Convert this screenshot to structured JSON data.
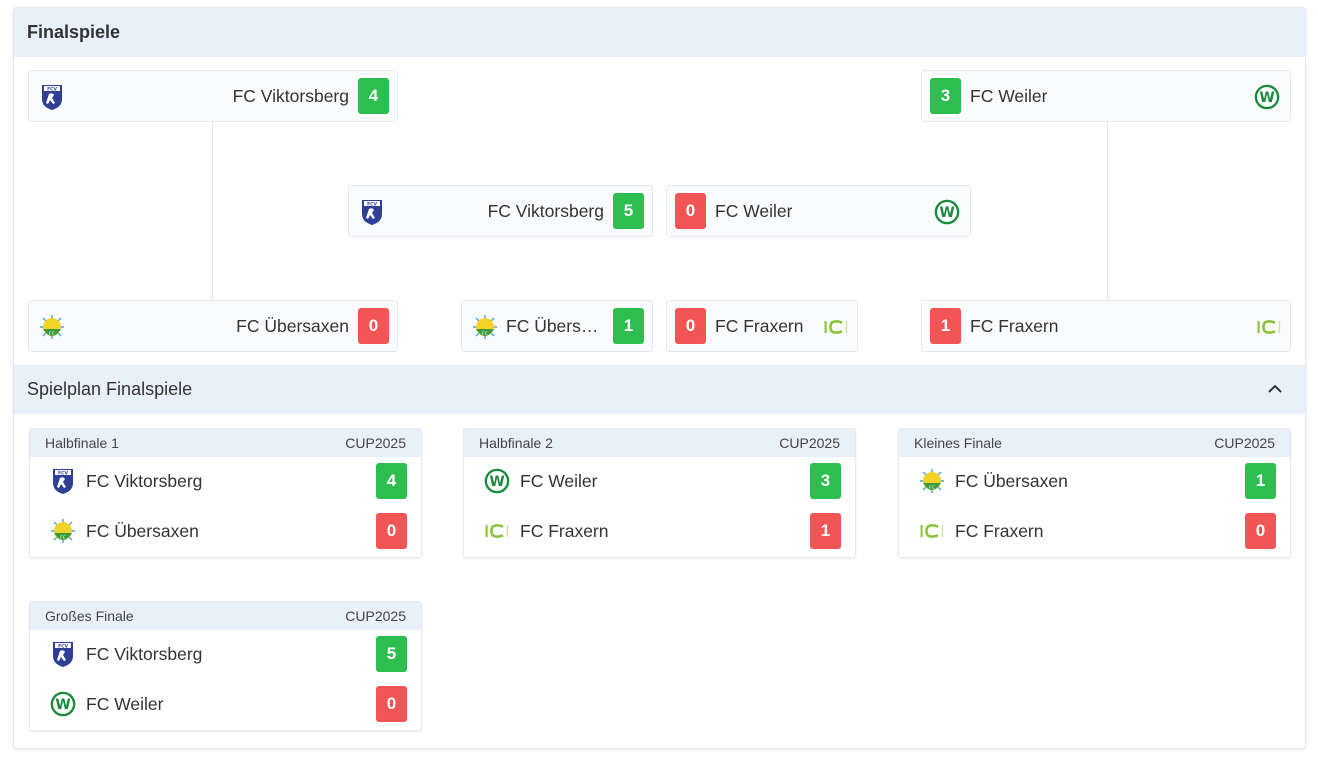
{
  "finals_title": "Finalspiele",
  "schedule_title": "Spielplan Finalspiele",
  "colors": {
    "win": "#2ebd4f",
    "lose": "#f25555",
    "header_bg": "#e8f0fa"
  },
  "bracket": {
    "sf1_home": {
      "team": "FC Viktorsberg",
      "score": "4",
      "logo": "viktorsberg-logo",
      "result": "win"
    },
    "sf1_away": {
      "team": "FC Übersaxen",
      "score": "0",
      "logo": "uebersaxen-logo",
      "result": "lose"
    },
    "sf2_home": {
      "team": "FC Weiler",
      "score": "3",
      "logo": "weiler-logo",
      "result": "win"
    },
    "sf2_away": {
      "team": "FC Fraxern",
      "score": "1",
      "logo": "fraxern-logo",
      "result": "lose"
    },
    "final_home": {
      "team": "FC Viktorsberg",
      "score": "5",
      "logo": "viktorsberg-logo",
      "result": "win"
    },
    "final_away": {
      "team": "FC Weiler",
      "score": "0",
      "logo": "weiler-logo",
      "result": "lose"
    },
    "third_home": {
      "team": "FC Übersaxen",
      "score": "1",
      "logo": "uebersaxen-logo",
      "result": "win"
    },
    "third_away": {
      "team": "FC Fraxern",
      "score": "0",
      "logo": "fraxern-logo",
      "result": "lose"
    }
  },
  "schedule": [
    {
      "round": "Halbfinale 1",
      "code": "CUP2025",
      "teams": [
        {
          "team": "FC Viktorsberg",
          "score": "4",
          "logo": "viktorsberg-logo"
        },
        {
          "team": "FC Übersaxen",
          "score": "0",
          "logo": "uebersaxen-logo"
        }
      ]
    },
    {
      "round": "Halbfinale 2",
      "code": "CUP2025",
      "teams": [
        {
          "team": "FC Weiler",
          "score": "3",
          "logo": "weiler-logo"
        },
        {
          "team": "FC Fraxern",
          "score": "1",
          "logo": "fraxern-logo"
        }
      ]
    },
    {
      "round": "Kleines Finale",
      "code": "CUP2025",
      "teams": [
        {
          "team": "FC Übersaxen",
          "score": "1",
          "logo": "uebersaxen-logo"
        },
        {
          "team": "FC Fraxern",
          "score": "0",
          "logo": "fraxern-logo"
        }
      ]
    },
    {
      "round": "Großes Finale",
      "code": "CUP2025",
      "teams": [
        {
          "team": "FC Viktorsberg",
          "score": "5",
          "logo": "viktorsberg-logo"
        },
        {
          "team": "FC Weiler",
          "score": "0",
          "logo": "weiler-logo"
        }
      ]
    }
  ]
}
